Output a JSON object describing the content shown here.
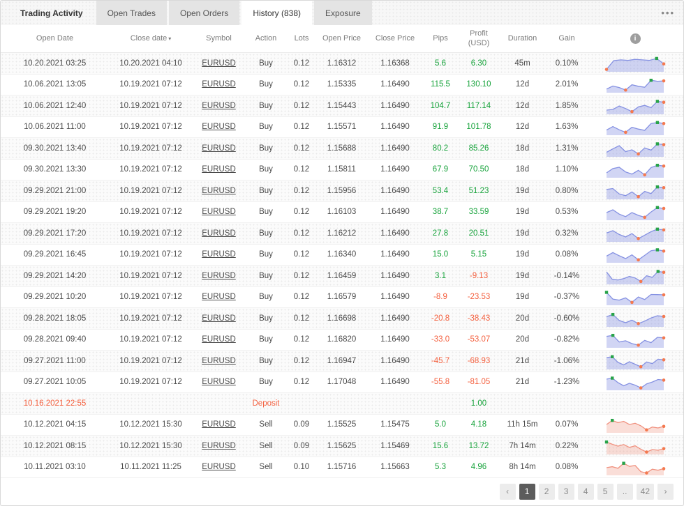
{
  "tabs": {
    "items": [
      {
        "label": "Trading Activity"
      },
      {
        "label": "Open Trades"
      },
      {
        "label": "Open Orders"
      },
      {
        "label": "History (838)"
      },
      {
        "label": "Exposure"
      }
    ]
  },
  "icons": {
    "menu": "•••",
    "sort_desc": "▾",
    "info": "i"
  },
  "colors": {
    "positive": "#18a33c",
    "negative": "#f4603f",
    "deposit": "#f4603f",
    "spark_blue_line": "#8591e2",
    "spark_blue_fill": "rgba(133,145,226,0.38)",
    "spark_red_line": "#f0917f",
    "spark_red_fill": "rgba(240,145,127,0.30)",
    "marker_green": "#28a349",
    "marker_orange": "#f4794f"
  },
  "table": {
    "columns": [
      {
        "label": "Open Date",
        "name": "open-date"
      },
      {
        "label": "Close date",
        "name": "close-date",
        "sort": "desc"
      },
      {
        "label": "Symbol",
        "name": "symbol"
      },
      {
        "label": "Action",
        "name": "action"
      },
      {
        "label": "Lots",
        "name": "lots"
      },
      {
        "label": "Open Price",
        "name": "open-price"
      },
      {
        "label": "Close Price",
        "name": "close-price"
      },
      {
        "label": "Pips",
        "name": "pips"
      },
      {
        "label": "Profit\n(USD)",
        "name": "profit-usd"
      },
      {
        "label": "Duration",
        "name": "duration"
      },
      {
        "label": "Gain",
        "name": "gain"
      },
      {
        "label": "",
        "name": "chart",
        "info_icon": true
      }
    ]
  },
  "rows": [
    {
      "type": "trade",
      "open_date": "10.20.2021 03:25",
      "close_date": "10.20.2021 04:10",
      "symbol": "EURUSD",
      "action": "Buy",
      "lots": "0.12",
      "open_price": "1.16312",
      "close_price": "1.16368",
      "pips": "5.6",
      "profit": "6.30",
      "duration": "45m",
      "gain": "0.10%",
      "chart": {
        "palette": "blue",
        "pts": [
          0.08,
          0.78,
          0.84,
          0.8,
          0.88,
          0.84,
          0.8,
          0.95,
          0.52
        ]
      }
    },
    {
      "type": "trade",
      "open_date": "10.06.2021 13:05",
      "close_date": "10.19.2021 07:12",
      "symbol": "EURUSD",
      "action": "Buy",
      "lots": "0.12",
      "open_price": "1.15335",
      "close_price": "1.16490",
      "pips": "115.5",
      "profit": "130.10",
      "duration": "12d",
      "gain": "2.01%",
      "chart": {
        "palette": "blue",
        "pts": [
          0.18,
          0.42,
          0.3,
          0.1,
          0.52,
          0.4,
          0.32,
          0.88,
          0.8,
          0.83
        ]
      }
    },
    {
      "type": "trade",
      "open_date": "10.06.2021 12:40",
      "close_date": "10.19.2021 07:12",
      "symbol": "EURUSD",
      "action": "Buy",
      "lots": "0.12",
      "open_price": "1.15443",
      "close_price": "1.16490",
      "pips": "104.7",
      "profit": "117.14",
      "duration": "12d",
      "gain": "1.85%",
      "chart": {
        "palette": "blue",
        "pts": [
          0.22,
          0.28,
          0.55,
          0.35,
          0.1,
          0.48,
          0.6,
          0.42,
          0.92,
          0.85
        ]
      }
    },
    {
      "type": "trade",
      "open_date": "10.06.2021 11:00",
      "close_date": "10.19.2021 07:12",
      "symbol": "EURUSD",
      "action": "Buy",
      "lots": "0.12",
      "open_price": "1.15571",
      "close_price": "1.16490",
      "pips": "91.9",
      "profit": "101.78",
      "duration": "12d",
      "gain": "1.63%",
      "chart": {
        "palette": "blue",
        "pts": [
          0.3,
          0.58,
          0.32,
          0.12,
          0.52,
          0.38,
          0.28,
          0.82,
          0.9,
          0.82
        ]
      }
    },
    {
      "type": "trade",
      "open_date": "09.30.2021 13:40",
      "close_date": "10.19.2021 07:12",
      "symbol": "EURUSD",
      "action": "Buy",
      "lots": "0.12",
      "open_price": "1.15688",
      "close_price": "1.16490",
      "pips": "80.2",
      "profit": "85.26",
      "duration": "18d",
      "gain": "1.31%",
      "chart": {
        "palette": "blue",
        "pts": [
          0.25,
          0.52,
          0.78,
          0.3,
          0.45,
          0.12,
          0.6,
          0.42,
          0.92,
          0.86
        ]
      }
    },
    {
      "type": "trade",
      "open_date": "09.30.2021 13:30",
      "close_date": "10.19.2021 07:12",
      "symbol": "EURUSD",
      "action": "Buy",
      "lots": "0.12",
      "open_price": "1.15811",
      "close_price": "1.16490",
      "pips": "67.9",
      "profit": "70.50",
      "duration": "18d",
      "gain": "1.10%",
      "chart": {
        "palette": "blue",
        "pts": [
          0.28,
          0.62,
          0.72,
          0.35,
          0.18,
          0.48,
          0.12,
          0.7,
          0.88,
          0.82
        ]
      }
    },
    {
      "type": "trade",
      "open_date": "09.29.2021 21:00",
      "close_date": "10.19.2021 07:12",
      "symbol": "EURUSD",
      "action": "Buy",
      "lots": "0.12",
      "open_price": "1.15956",
      "close_price": "1.16490",
      "pips": "53.4",
      "profit": "51.23",
      "duration": "19d",
      "gain": "0.80%",
      "chart": {
        "palette": "blue",
        "pts": [
          0.68,
          0.75,
          0.32,
          0.18,
          0.48,
          0.1,
          0.52,
          0.35,
          0.88,
          0.82
        ]
      }
    },
    {
      "type": "trade",
      "open_date": "09.29.2021 19:20",
      "close_date": "10.19.2021 07:12",
      "symbol": "EURUSD",
      "action": "Buy",
      "lots": "0.12",
      "open_price": "1.16103",
      "close_price": "1.16490",
      "pips": "38.7",
      "profit": "33.59",
      "duration": "19d",
      "gain": "0.53%",
      "chart": {
        "palette": "blue",
        "pts": [
          0.5,
          0.72,
          0.38,
          0.18,
          0.5,
          0.28,
          0.12,
          0.55,
          0.9,
          0.83
        ]
      }
    },
    {
      "type": "trade",
      "open_date": "09.29.2021 17:20",
      "close_date": "10.19.2021 07:12",
      "symbol": "EURUSD",
      "action": "Buy",
      "lots": "0.12",
      "open_price": "1.16212",
      "close_price": "1.16490",
      "pips": "27.8",
      "profit": "20.51",
      "duration": "19d",
      "gain": "0.32%",
      "chart": {
        "palette": "blue",
        "pts": [
          0.6,
          0.78,
          0.48,
          0.28,
          0.55,
          0.15,
          0.42,
          0.7,
          0.9,
          0.84
        ]
      }
    },
    {
      "type": "trade",
      "open_date": "09.29.2021 16:45",
      "close_date": "10.19.2021 07:12",
      "symbol": "EURUSD",
      "action": "Buy",
      "lots": "0.12",
      "open_price": "1.16340",
      "close_price": "1.16490",
      "pips": "15.0",
      "profit": "5.15",
      "duration": "19d",
      "gain": "0.08%",
      "chart": {
        "palette": "blue",
        "pts": [
          0.42,
          0.7,
          0.45,
          0.22,
          0.52,
          0.12,
          0.48,
          0.85,
          0.92,
          0.82
        ]
      }
    },
    {
      "type": "trade",
      "open_date": "09.29.2021 14:20",
      "close_date": "10.19.2021 07:12",
      "symbol": "EURUSD",
      "action": "Buy",
      "lots": "0.12",
      "open_price": "1.16459",
      "close_price": "1.16490",
      "pips": "3.1",
      "profit": "-9.13",
      "duration": "19d",
      "gain": "-0.14%",
      "chart": {
        "palette": "blue",
        "pts": [
          0.88,
          0.3,
          0.24,
          0.35,
          0.52,
          0.4,
          0.12,
          0.58,
          0.45,
          0.92,
          0.85
        ]
      }
    },
    {
      "type": "trade",
      "open_date": "09.29.2021 10:20",
      "close_date": "10.19.2021 07:12",
      "symbol": "EURUSD",
      "action": "Buy",
      "lots": "0.12",
      "open_price": "1.16579",
      "close_price": "1.16490",
      "pips": "-8.9",
      "profit": "-23.53",
      "duration": "19d",
      "gain": "-0.37%",
      "chart": {
        "palette": "blue",
        "pts": [
          0.92,
          0.38,
          0.3,
          0.48,
          0.12,
          0.55,
          0.35,
          0.75,
          0.74,
          0.72
        ]
      }
    },
    {
      "type": "trade",
      "open_date": "09.28.2021 18:05",
      "close_date": "10.19.2021 07:12",
      "symbol": "EURUSD",
      "action": "Buy",
      "lots": "0.12",
      "open_price": "1.16698",
      "close_price": "1.16490",
      "pips": "-20.8",
      "profit": "-38.43",
      "duration": "20d",
      "gain": "-0.60%",
      "chart": {
        "palette": "blue",
        "pts": [
          0.7,
          0.88,
          0.4,
          0.22,
          0.42,
          0.15,
          0.35,
          0.6,
          0.78,
          0.72
        ]
      }
    },
    {
      "type": "trade",
      "open_date": "09.28.2021 09:40",
      "close_date": "10.19.2021 07:12",
      "symbol": "EURUSD",
      "action": "Buy",
      "lots": "0.12",
      "open_price": "1.16820",
      "close_price": "1.16490",
      "pips": "-33.0",
      "profit": "-53.07",
      "duration": "20d",
      "gain": "-0.82%",
      "chart": {
        "palette": "blue",
        "pts": [
          0.8,
          0.88,
          0.35,
          0.45,
          0.22,
          0.1,
          0.48,
          0.3,
          0.72,
          0.68
        ]
      }
    },
    {
      "type": "trade",
      "open_date": "09.27.2021 11:00",
      "close_date": "10.19.2021 07:12",
      "symbol": "EURUSD",
      "action": "Buy",
      "lots": "0.12",
      "open_price": "1.16947",
      "close_price": "1.16490",
      "pips": "-45.7",
      "profit": "-68.93",
      "duration": "21d",
      "gain": "-1.06%",
      "chart": {
        "palette": "blue",
        "pts": [
          0.82,
          0.9,
          0.45,
          0.25,
          0.5,
          0.3,
          0.1,
          0.48,
          0.35,
          0.7,
          0.65
        ]
      }
    },
    {
      "type": "trade",
      "open_date": "09.27.2021 10:05",
      "close_date": "10.19.2021 07:12",
      "symbol": "EURUSD",
      "action": "Buy",
      "lots": "0.12",
      "open_price": "1.17048",
      "close_price": "1.16490",
      "pips": "-55.8",
      "profit": "-81.05",
      "duration": "21d",
      "gain": "-1.23%",
      "chart": {
        "palette": "blue",
        "pts": [
          0.78,
          0.86,
          0.5,
          0.25,
          0.45,
          0.3,
          0.08,
          0.4,
          0.55,
          0.75,
          0.7
        ]
      }
    },
    {
      "type": "deposit",
      "open_date": "10.16.2021 22:55",
      "action_label": "Deposit",
      "profit": "1.00"
    },
    {
      "type": "trade",
      "open_date": "10.12.2021 04:15",
      "close_date": "10.12.2021 15:30",
      "symbol": "EURUSD",
      "action": "Sell",
      "lots": "0.09",
      "open_price": "1.15525",
      "close_price": "1.15475",
      "pips": "5.0",
      "profit": "4.18",
      "duration": "11h 15m",
      "gain": "0.07%",
      "chart": {
        "palette": "red",
        "pts": [
          0.55,
          0.88,
          0.7,
          0.8,
          0.55,
          0.65,
          0.45,
          0.12,
          0.35,
          0.28,
          0.4
        ]
      }
    },
    {
      "type": "trade",
      "open_date": "10.12.2021 08:15",
      "close_date": "10.12.2021 15:30",
      "symbol": "EURUSD",
      "action": "Sell",
      "lots": "0.09",
      "open_price": "1.15625",
      "close_price": "1.15469",
      "pips": "15.6",
      "profit": "13.72",
      "duration": "7h 14m",
      "gain": "0.22%",
      "chart": {
        "palette": "red",
        "pts": [
          0.88,
          0.7,
          0.55,
          0.68,
          0.45,
          0.58,
          0.3,
          0.08,
          0.28,
          0.22,
          0.35
        ]
      }
    },
    {
      "type": "trade",
      "open_date": "10.11.2021 03:10",
      "close_date": "10.11.2021 11:25",
      "symbol": "EURUSD",
      "action": "Sell",
      "lots": "0.10",
      "open_price": "1.15716",
      "close_price": "1.15663",
      "pips": "5.3",
      "profit": "4.96",
      "duration": "8h 14m",
      "gain": "0.08%",
      "chart": {
        "palette": "red",
        "pts": [
          0.5,
          0.58,
          0.45,
          0.85,
          0.6,
          0.68,
          0.18,
          0.08,
          0.38,
          0.3,
          0.42
        ]
      }
    }
  ],
  "pagination": {
    "prev": "‹",
    "next": "›",
    "pages": [
      "1",
      "2",
      "3",
      "4",
      "5",
      "..",
      "42"
    ],
    "active": "1"
  }
}
